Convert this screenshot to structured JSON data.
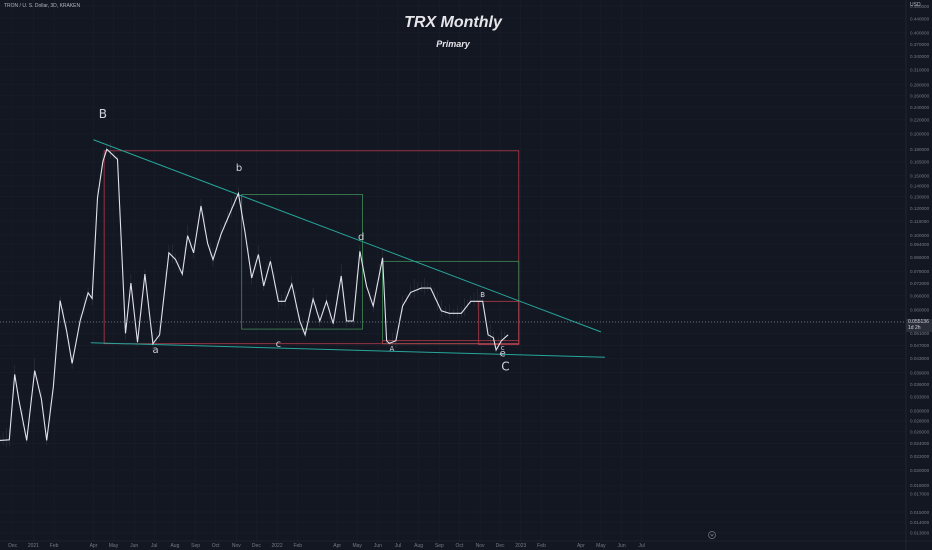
{
  "header": {
    "symbol_line": "TRON / U. S. Dollar, 3D, KRAKEN",
    "title": "TRX Monthly",
    "subtitle": "Primary"
  },
  "price_scale": {
    "currency": "USD",
    "current_price": "0.055136",
    "countdown": "1d 2h"
  },
  "colors": {
    "background": "#131722",
    "price_line": "#e0e3eb",
    "trendline": "#26a69a",
    "red_box": "#b53a4a",
    "green_box": "#3f8a55",
    "grid": "#1c2030",
    "axis_text": "#787b86"
  },
  "chart_data": {
    "type": "line",
    "title": "TRX Monthly",
    "subtitle": "Primary",
    "scale": "log",
    "ylim": [
      0.0123,
      0.5
    ],
    "xlim": [
      "2020-11-12",
      "2024-07-31"
    ],
    "y_ticks": [
      "0.480000",
      "0.440000",
      "0.400000",
      "0.370000",
      "0.340000",
      "0.310000",
      "0.280000",
      "0.260000",
      "0.240000",
      "0.220000",
      "0.200000",
      "0.180000",
      "0.165000",
      "0.150000",
      "0.140000",
      "0.130000",
      "0.120000",
      "0.110000",
      "0.100000",
      "0.094000",
      "0.086000",
      "0.078000",
      "0.072000",
      "0.066000",
      "0.060000",
      "0.055000",
      "0.051000",
      "0.047000",
      "0.043000",
      "0.039000",
      "0.036000",
      "0.033000",
      "0.030000",
      "0.028000",
      "0.026000",
      "0.024000",
      "0.022000",
      "0.020000",
      "0.018000",
      "0.017000",
      "0.015000",
      "0.014000",
      "0.013000"
    ],
    "x_ticks": [
      {
        "label": "Dec",
        "date": "2020-12-01"
      },
      {
        "label": "2021",
        "date": "2021-01-01"
      },
      {
        "label": "Feb",
        "date": "2021-02-01"
      },
      {
        "label": "Apr",
        "date": "2021-04-01"
      },
      {
        "label": "May",
        "date": "2021-05-01"
      },
      {
        "label": "Jun",
        "date": "2021-06-01"
      },
      {
        "label": "Jul",
        "date": "2021-07-01"
      },
      {
        "label": "Aug",
        "date": "2021-08-01"
      },
      {
        "label": "Sep",
        "date": "2021-09-01"
      },
      {
        "label": "Oct",
        "date": "2021-10-01"
      },
      {
        "label": "Nov",
        "date": "2021-11-01"
      },
      {
        "label": "Dec",
        "date": "2021-12-01"
      },
      {
        "label": "2022",
        "date": "2022-01-01"
      },
      {
        "label": "Feb",
        "date": "2022-02-01"
      },
      {
        "label": "Apr",
        "date": "2022-04-01"
      },
      {
        "label": "May",
        "date": "2022-05-01"
      },
      {
        "label": "Jun",
        "date": "2022-06-01"
      },
      {
        "label": "Jul",
        "date": "2022-07-01"
      },
      {
        "label": "Aug",
        "date": "2022-08-01"
      },
      {
        "label": "Sep",
        "date": "2022-09-01"
      },
      {
        "label": "Oct",
        "date": "2022-10-01"
      },
      {
        "label": "Nov",
        "date": "2022-11-01"
      },
      {
        "label": "Dec",
        "date": "2022-12-01"
      },
      {
        "label": "2023",
        "date": "2023-01-01"
      },
      {
        "label": "Feb",
        "date": "2023-02-01"
      },
      {
        "label": "Apr",
        "date": "2023-04-01"
      },
      {
        "label": "May",
        "date": "2023-05-01"
      },
      {
        "label": "Jun",
        "date": "2023-06-01"
      },
      {
        "label": "Jul",
        "date": "2023-07-01"
      }
    ],
    "series": [
      {
        "points": [
          {
            "x": "2020-11-12",
            "y": 0.0245
          },
          {
            "x": "2020-11-26",
            "y": 0.0246
          },
          {
            "x": "2020-12-04",
            "y": 0.0385
          },
          {
            "x": "2020-12-10",
            "y": 0.0325
          },
          {
            "x": "2020-12-22",
            "y": 0.0245
          },
          {
            "x": "2021-01-03",
            "y": 0.0395
          },
          {
            "x": "2021-01-13",
            "y": 0.0325
          },
          {
            "x": "2021-01-21",
            "y": 0.0245
          },
          {
            "x": "2021-01-31",
            "y": 0.0355
          },
          {
            "x": "2021-02-10",
            "y": 0.0638
          },
          {
            "x": "2021-02-20",
            "y": 0.0515
          },
          {
            "x": "2021-02-28",
            "y": 0.0415
          },
          {
            "x": "2021-03-12",
            "y": 0.0555
          },
          {
            "x": "2021-03-24",
            "y": 0.0673
          },
          {
            "x": "2021-03-30",
            "y": 0.0648
          },
          {
            "x": "2021-04-07",
            "y": 0.129
          },
          {
            "x": "2021-04-15",
            "y": 0.165
          },
          {
            "x": "2021-04-21",
            "y": 0.18
          },
          {
            "x": "2021-05-07",
            "y": 0.168
          },
          {
            "x": "2021-05-19",
            "y": 0.051
          },
          {
            "x": "2021-05-27",
            "y": 0.072
          },
          {
            "x": "2021-06-06",
            "y": 0.048
          },
          {
            "x": "2021-06-17",
            "y": 0.0765
          },
          {
            "x": "2021-06-29",
            "y": 0.0475
          },
          {
            "x": "2021-07-09",
            "y": 0.0505
          },
          {
            "x": "2021-07-23",
            "y": 0.0885
          },
          {
            "x": "2021-08-02",
            "y": 0.0845
          },
          {
            "x": "2021-08-12",
            "y": 0.0765
          },
          {
            "x": "2021-08-20",
            "y": 0.0995
          },
          {
            "x": "2021-08-29",
            "y": 0.0885
          },
          {
            "x": "2021-09-09",
            "y": 0.122
          },
          {
            "x": "2021-09-19",
            "y": 0.0945
          },
          {
            "x": "2021-09-27",
            "y": 0.0845
          },
          {
            "x": "2021-10-09",
            "y": 0.1005
          },
          {
            "x": "2021-10-19",
            "y": 0.112
          },
          {
            "x": "2021-11-04",
            "y": 0.133
          },
          {
            "x": "2021-11-14",
            "y": 0.102
          },
          {
            "x": "2021-11-24",
            "y": 0.0745
          },
          {
            "x": "2021-12-04",
            "y": 0.0875
          },
          {
            "x": "2021-12-12",
            "y": 0.0705
          },
          {
            "x": "2021-12-22",
            "y": 0.0835
          },
          {
            "x": "2022-01-03",
            "y": 0.0635
          },
          {
            "x": "2022-01-13",
            "y": 0.0635
          },
          {
            "x": "2022-01-23",
            "y": 0.0715
          },
          {
            "x": "2022-02-04",
            "y": 0.0555
          },
          {
            "x": "2022-02-12",
            "y": 0.0505
          },
          {
            "x": "2022-02-24",
            "y": 0.0645
          },
          {
            "x": "2022-03-06",
            "y": 0.0555
          },
          {
            "x": "2022-03-16",
            "y": 0.0635
          },
          {
            "x": "2022-03-26",
            "y": 0.0545
          },
          {
            "x": "2022-04-07",
            "y": 0.0755
          },
          {
            "x": "2022-04-15",
            "y": 0.0555
          },
          {
            "x": "2022-04-25",
            "y": 0.0555
          },
          {
            "x": "2022-05-05",
            "y": 0.0895
          },
          {
            "x": "2022-05-15",
            "y": 0.0705
          },
          {
            "x": "2022-05-25",
            "y": 0.0615
          },
          {
            "x": "2022-06-08",
            "y": 0.0855
          },
          {
            "x": "2022-06-14",
            "y": 0.0485
          },
          {
            "x": "2022-06-18",
            "y": 0.0476
          },
          {
            "x": "2022-06-28",
            "y": 0.0485
          },
          {
            "x": "2022-07-08",
            "y": 0.0615
          },
          {
            "x": "2022-07-20",
            "y": 0.0675
          },
          {
            "x": "2022-08-05",
            "y": 0.0695
          },
          {
            "x": "2022-08-19",
            "y": 0.0695
          },
          {
            "x": "2022-09-04",
            "y": 0.0595
          },
          {
            "x": "2022-09-16",
            "y": 0.0585
          },
          {
            "x": "2022-10-04",
            "y": 0.0585
          },
          {
            "x": "2022-10-18",
            "y": 0.0635
          },
          {
            "x": "2022-10-28",
            "y": 0.0635
          },
          {
            "x": "2022-11-05",
            "y": 0.0635
          },
          {
            "x": "2022-11-13",
            "y": 0.0505
          },
          {
            "x": "2022-11-21",
            "y": 0.0495
          },
          {
            "x": "2022-11-25",
            "y": 0.0455
          },
          {
            "x": "2022-12-03",
            "y": 0.0485
          },
          {
            "x": "2022-12-13",
            "y": 0.0505
          }
        ]
      }
    ],
    "annotations": [
      {
        "text": "B",
        "x": "2021-04-15",
        "y": 0.2225,
        "size": "large"
      },
      {
        "text": "b",
        "x": "2021-11-05",
        "y": 0.155,
        "size": "medium"
      },
      {
        "text": "d",
        "x": "2022-05-07",
        "y": 0.0965,
        "size": "medium"
      },
      {
        "text": "a",
        "x": "2021-07-03",
        "y": 0.0445,
        "size": "medium"
      },
      {
        "text": "c",
        "x": "2022-01-03",
        "y": 0.0465,
        "size": "medium"
      },
      {
        "text": "A",
        "x": "2022-06-22",
        "y": 0.0452,
        "size": "small"
      },
      {
        "text": "B",
        "x": "2022-11-05",
        "y": 0.0655,
        "size": "small"
      },
      {
        "text": "c",
        "x": "2022-12-05",
        "y": 0.0455,
        "size": "small"
      },
      {
        "text": "e",
        "x": "2022-12-05",
        "y": 0.0435,
        "size": "medium"
      },
      {
        "text": "C",
        "x": "2022-12-09",
        "y": 0.0395,
        "size": "large"
      }
    ],
    "trendlines": [
      {
        "from": {
          "x": "2021-04-01",
          "y": 0.192
        },
        "to": {
          "x": "2023-05-01",
          "y": 0.0515
        }
      },
      {
        "from": {
          "x": "2021-03-28",
          "y": 0.0478
        },
        "to": {
          "x": "2023-05-07",
          "y": 0.0433
        }
      }
    ],
    "boxes": [
      {
        "color": "red",
        "x0": "2021-04-17",
        "x1": "2022-12-29",
        "y0": 0.0475,
        "y1": 0.178
      },
      {
        "color": "green",
        "x0": "2021-11-09",
        "x1": "2022-05-09",
        "y0": 0.0525,
        "y1": 0.132
      },
      {
        "color": "green",
        "x0": "2022-06-08",
        "x1": "2022-12-29",
        "y0": 0.0475,
        "y1": 0.0835
      },
      {
        "color": "red",
        "x0": "2022-06-08",
        "x1": "2022-12-29",
        "y0": 0.0475,
        "y1": 0.0485
      },
      {
        "color": "red",
        "x0": "2022-10-30",
        "x1": "2022-12-29",
        "y0": 0.0472,
        "y1": 0.0635
      }
    ]
  }
}
